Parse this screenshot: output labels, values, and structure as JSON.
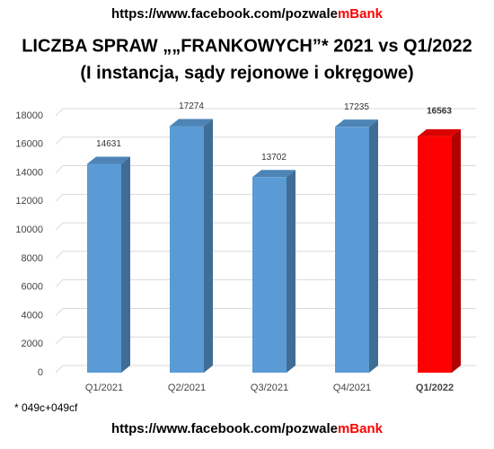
{
  "header": {
    "url": "https://www.facebook.com/pozwale",
    "brand": "mBank"
  },
  "chart_data": {
    "type": "bar",
    "title": "LICZBA SPRAW „„FRANKOWYCH”* 2021 vs Q1/2022",
    "subtitle": "(I instancja, sądy rejonowe i okręgowe)",
    "categories": [
      "Q1/2021",
      "Q2/2021",
      "Q3/2021",
      "Q4/2021",
      "Q1/2022"
    ],
    "values": [
      14631,
      17274,
      13702,
      17235,
      16563
    ],
    "colors": [
      "#5b9bd5",
      "#5b9bd5",
      "#5b9bd5",
      "#5b9bd5",
      "#ff0000"
    ],
    "ylim": [
      0,
      18000
    ],
    "yticks": [
      0,
      2000,
      4000,
      6000,
      8000,
      10000,
      12000,
      14000,
      16000,
      18000
    ],
    "grid": true
  },
  "footnote": "* 049c+049cf"
}
